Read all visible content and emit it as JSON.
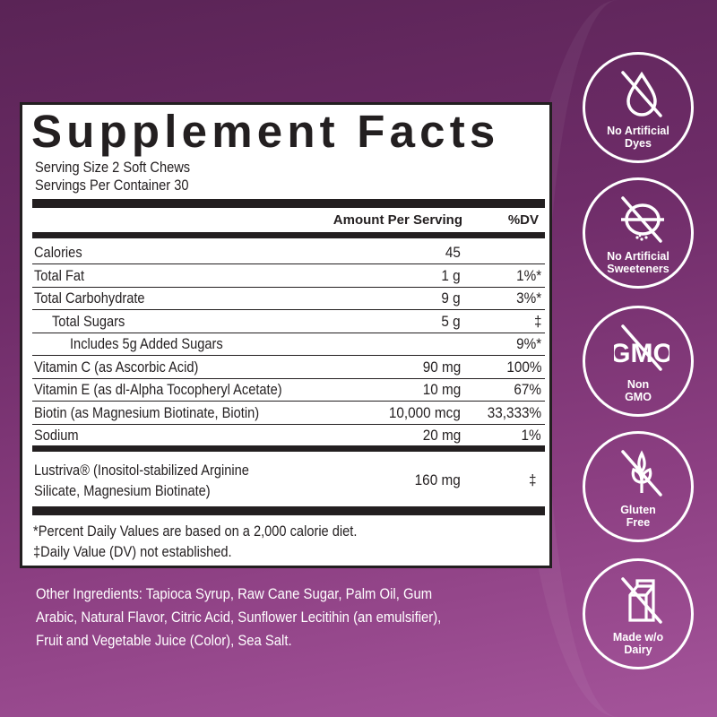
{
  "colors": {
    "background_top": "#5a2456",
    "background_bottom": "#a4549a",
    "panel": "#ffffff",
    "ink": "#231f20"
  },
  "facts": {
    "title": "Supplement Facts",
    "serving_size": "Serving Size 2 Soft Chews",
    "servings_per_container": "Servings Per Container 30",
    "header_amount": "Amount Per Serving",
    "header_dv": "%DV",
    "rows": [
      {
        "name": "Calories",
        "amount": "45",
        "dv": "",
        "indent": 0
      },
      {
        "name": "Total Fat",
        "amount": "1 g",
        "dv": "1%*",
        "indent": 0
      },
      {
        "name": "Total Carbohydrate",
        "amount": "9 g",
        "dv": "3%*",
        "indent": 0
      },
      {
        "name": "Total Sugars",
        "amount": "5 g",
        "dv": "‡",
        "indent": 1
      },
      {
        "name": "Includes 5g Added Sugars",
        "amount": "",
        "dv": "9%*",
        "indent": 2
      },
      {
        "name": "Vitamin C (as Ascorbic Acid)",
        "amount": "90 mg",
        "dv": "100%",
        "indent": 0
      },
      {
        "name": "Vitamin E (as dl-Alpha Tocopheryl Acetate)",
        "amount": "10 mg",
        "dv": "67%",
        "indent": 0
      },
      {
        "name": "Biotin (as Magnesium Biotinate, Biotin)",
        "amount": "10,000 mcg",
        "dv": "33,333%",
        "indent": 0
      },
      {
        "name": "Sodium",
        "amount": "20 mg",
        "dv": "1%",
        "indent": 0
      }
    ],
    "blend": {
      "name_line1": "Lustriva® (Inositol-stabilized Arginine",
      "name_line2": "Silicate, Magnesium Biotinate)",
      "amount": "160 mg",
      "dv": "‡"
    },
    "footnote1": "*Percent Daily Values are based on a 2,000 calorie diet.",
    "footnote2": "‡Daily Value (DV) not established."
  },
  "other_ingredients": {
    "line1": "Other Ingredients: Tapioca Syrup, Raw Cane Sugar, Palm Oil, Gum",
    "line2": "Arabic, Natural Flavor, Citric Acid, Sunflower Lecitihin (an emulsifier),",
    "line3": "Fruit and Vegetable Juice (Color), Sea Salt."
  },
  "badges": [
    {
      "icon": "no-drop-icon",
      "line1": "No Artificial",
      "line2": "Dyes"
    },
    {
      "icon": "no-sweetener-icon",
      "line1": "No Artificial",
      "line2": "Sweeteners"
    },
    {
      "icon": "no-gmo-icon",
      "line1": "Non",
      "line2": "GMO",
      "glyph": "GMO"
    },
    {
      "icon": "no-wheat-icon",
      "line1": "Gluten",
      "line2": "Free"
    },
    {
      "icon": "no-milk-carton-icon",
      "line1": "Made w/o",
      "line2": "Dairy"
    }
  ]
}
